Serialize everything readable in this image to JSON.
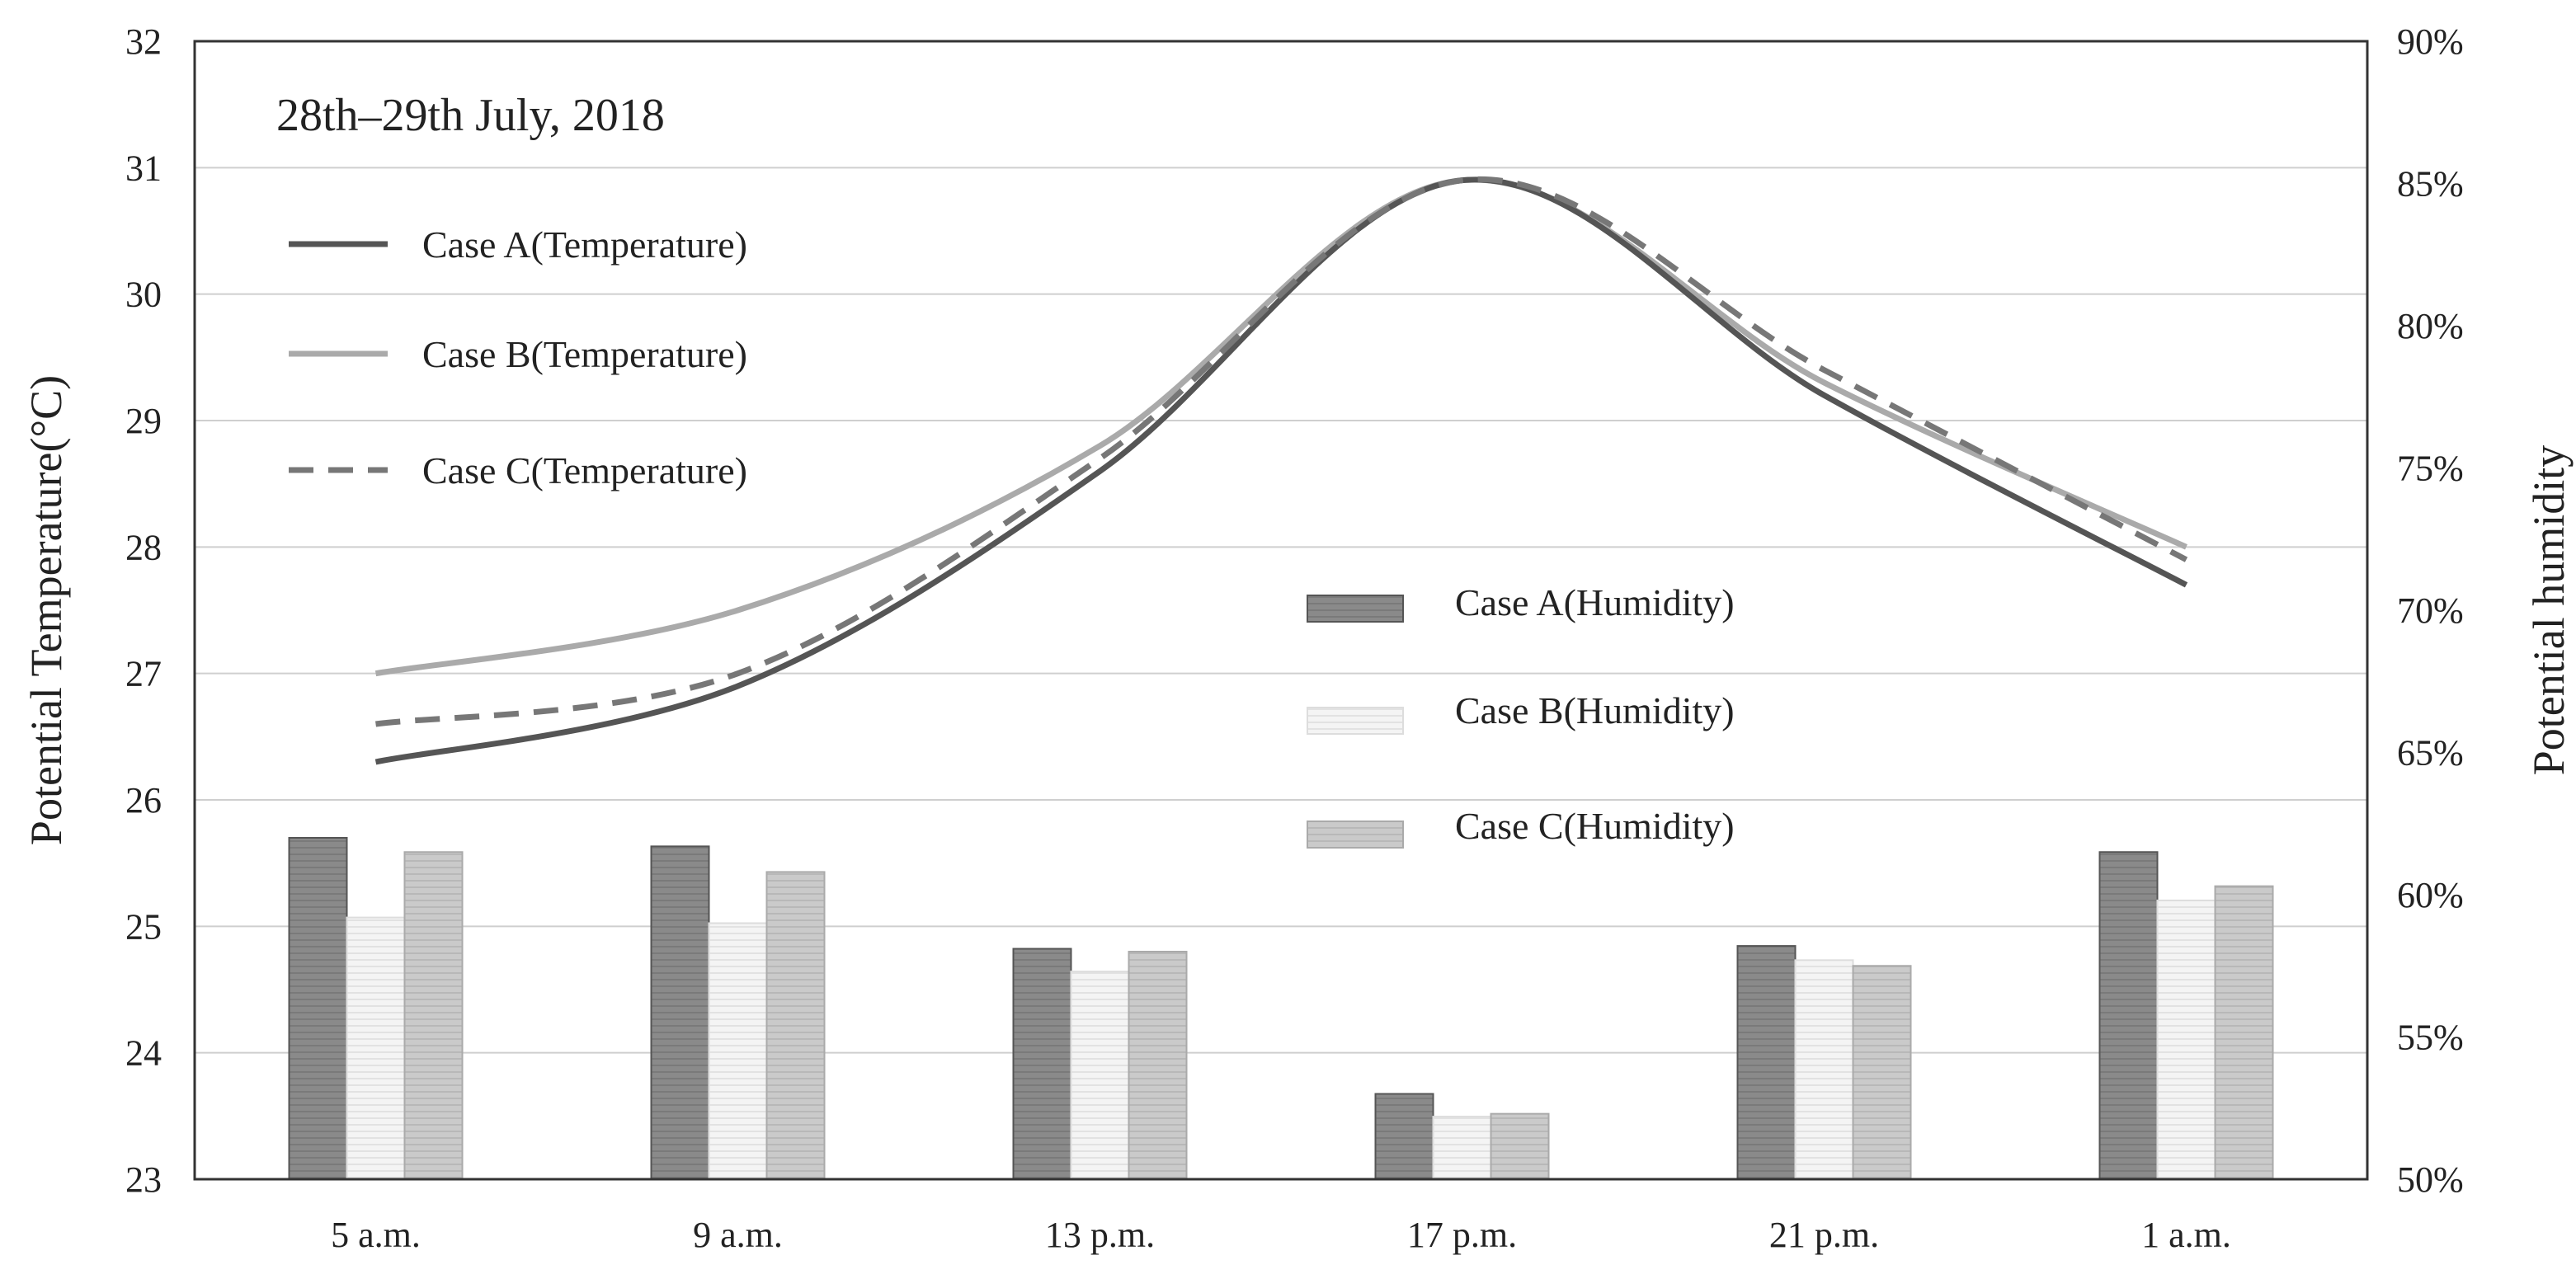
{
  "chart_data": {
    "type": "bar+line",
    "title": "28th–29th July, 2018",
    "xlabel": "",
    "ylabel": "Potential Temperature(°C)",
    "y2label": "Potential humidity",
    "categories": [
      "5 a.m.",
      "9 a.m.",
      "13 p.m.",
      "17 p.m.",
      "21 p.m.",
      "1 a.m."
    ],
    "ylim": [
      23,
      32
    ],
    "y_ticks": [
      23,
      24,
      25,
      26,
      27,
      28,
      29,
      30,
      31,
      32
    ],
    "y2lim": [
      50,
      90
    ],
    "y2_ticks": [
      "50%",
      "55%",
      "60%",
      "65%",
      "70%",
      "75%",
      "80%",
      "85%",
      "90%"
    ],
    "grid": true,
    "line_series": [
      {
        "name": "Case A(Temperature)",
        "style": "solid",
        "color": "#555555",
        "values": [
          26.3,
          26.9,
          28.6,
          30.9,
          29.2,
          27.7
        ]
      },
      {
        "name": "Case B(Temperature)",
        "style": "solid",
        "color": "#aaaaaa",
        "values": [
          27.0,
          27.5,
          28.8,
          30.9,
          29.3,
          28.0
        ]
      },
      {
        "name": "Case C(Temperature)",
        "style": "dashed",
        "color": "#777777",
        "values": [
          26.6,
          27.0,
          28.7,
          30.9,
          29.4,
          27.9
        ]
      }
    ],
    "bar_series": [
      {
        "name": "Case A(Humidity)",
        "color": "#8a8a8a",
        "values": [
          62.0,
          61.7,
          58.1,
          53.0,
          58.2,
          61.5
        ]
      },
      {
        "name": "Case B(Humidity)",
        "color": "#f1f1f1",
        "values": [
          59.2,
          59.0,
          57.3,
          52.2,
          57.7,
          59.8
        ]
      },
      {
        "name": "Case C(Humidity)",
        "color": "#c8c8c8",
        "values": [
          61.5,
          60.8,
          58.0,
          52.3,
          57.5,
          60.3
        ]
      }
    ]
  }
}
